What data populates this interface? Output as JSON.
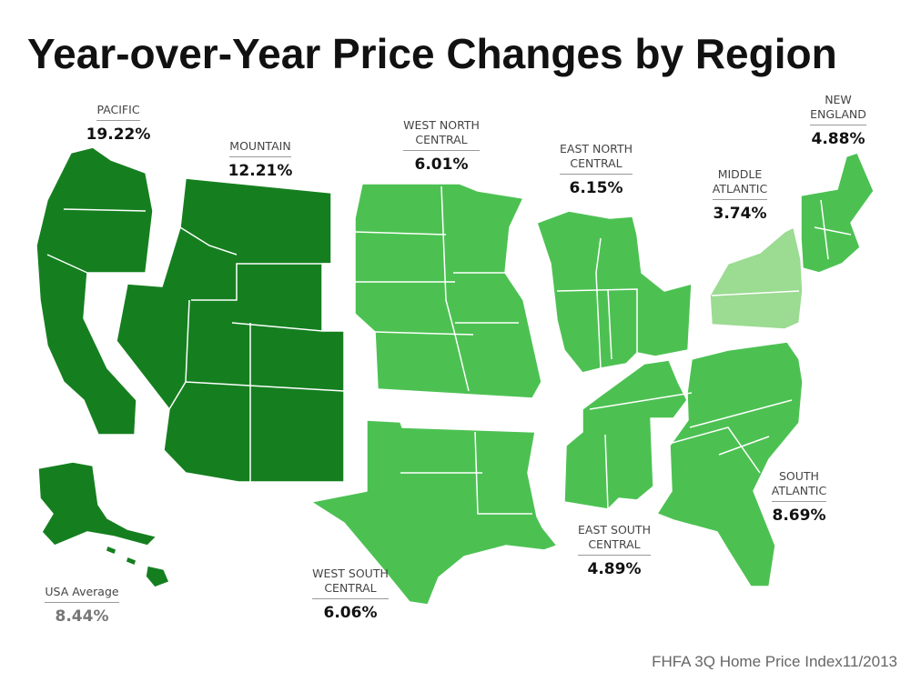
{
  "title": "Year-over-Year Price Changes by Region",
  "source": "FHFA 3Q Home Price Index11/2013",
  "colors": {
    "dark": "#157F1F",
    "medium": "#4CC152",
    "light": "#9BDB92",
    "border": "#ffffff"
  },
  "regions": [
    {
      "key": "pacific",
      "name": "PACIFIC",
      "value": "19.22%",
      "shade": "dark"
    },
    {
      "key": "mountain",
      "name": "MOUNTAIN",
      "value": "12.21%",
      "shade": "dark"
    },
    {
      "key": "west_north_central",
      "name": "WEST NORTH\nCENTRAL",
      "value": "6.01%",
      "shade": "medium"
    },
    {
      "key": "east_north_central",
      "name": "EAST NORTH\nCENTRAL",
      "value": "6.15%",
      "shade": "medium"
    },
    {
      "key": "middle_atlantic",
      "name": "MIDDLE\nATLANTIC",
      "value": "3.74%",
      "shade": "light"
    },
    {
      "key": "new_england",
      "name": "NEW\nENGLAND",
      "value": "4.88%",
      "shade": "medium"
    },
    {
      "key": "south_atlantic",
      "name": "SOUTH\nATLANTIC",
      "value": "8.69%",
      "shade": "medium"
    },
    {
      "key": "east_south_central",
      "name": "EAST SOUTH\nCENTRAL",
      "value": "4.89%",
      "shade": "medium"
    },
    {
      "key": "west_south_central",
      "name": "WEST SOUTH\nCENTRAL",
      "value": "6.06%",
      "shade": "medium"
    }
  ],
  "usa_average": {
    "name": "USA Average",
    "value": "8.44%"
  }
}
